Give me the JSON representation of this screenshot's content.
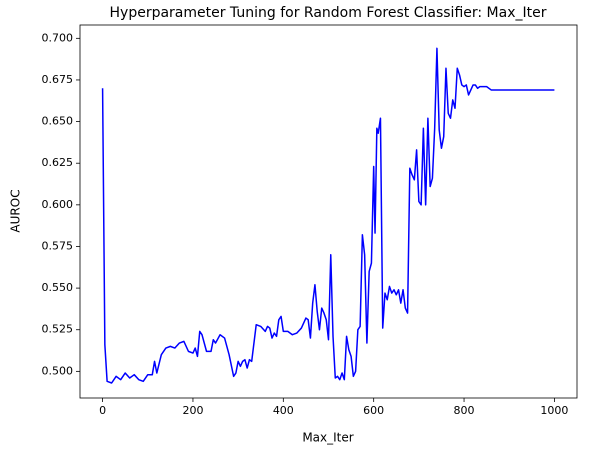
{
  "chart_data": {
    "type": "line",
    "title": "Hyperparameter Tuning for Random Forest Classifier: Max_Iter",
    "x_label": "Max_Iter",
    "y_label": "AUROC",
    "xlim": [
      -50,
      1050
    ],
    "ylim": [
      0.484,
      0.708
    ],
    "xticks": [
      0,
      200,
      400,
      600,
      800,
      1000
    ],
    "yticks": [
      {
        "value": 0.5,
        "label": "0.500"
      },
      {
        "value": 0.525,
        "label": "0.525"
      },
      {
        "value": 0.55,
        "label": "0.550"
      },
      {
        "value": 0.575,
        "label": "0.575"
      },
      {
        "value": 0.6,
        "label": "0.600"
      },
      {
        "value": 0.625,
        "label": "0.625"
      },
      {
        "value": 0.65,
        "label": "0.650"
      },
      {
        "value": 0.675,
        "label": "0.675"
      },
      {
        "value": 0.7,
        "label": "0.700"
      }
    ],
    "grid": false,
    "series": [
      {
        "color": "#0000ff",
        "x": [
          0,
          5,
          10,
          20,
          30,
          40,
          50,
          60,
          70,
          80,
          90,
          100,
          110,
          115,
          120,
          130,
          140,
          150,
          160,
          170,
          180,
          190,
          200,
          205,
          210,
          215,
          220,
          230,
          240,
          245,
          250,
          260,
          270,
          280,
          290,
          295,
          300,
          305,
          310,
          315,
          320,
          325,
          330,
          340,
          350,
          360,
          365,
          370,
          375,
          380,
          385,
          390,
          395,
          400,
          410,
          420,
          430,
          440,
          450,
          455,
          460,
          465,
          470,
          475,
          480,
          485,
          490,
          495,
          500,
          505,
          510,
          515,
          520,
          525,
          530,
          535,
          540,
          545,
          550,
          555,
          560,
          565,
          570,
          575,
          580,
          585,
          590,
          595,
          600,
          603,
          607,
          610,
          615,
          620,
          625,
          630,
          635,
          640,
          645,
          650,
          655,
          660,
          665,
          670,
          675,
          680,
          685,
          690,
          695,
          700,
          705,
          710,
          715,
          720,
          725,
          730,
          735,
          740,
          745,
          750,
          755,
          760,
          765,
          770,
          775,
          780,
          785,
          790,
          795,
          800,
          805,
          810,
          815,
          820,
          825,
          830,
          835,
          840,
          850,
          860,
          1000
        ],
        "values": [
          0.67,
          0.516,
          0.494,
          0.493,
          0.497,
          0.495,
          0.499,
          0.496,
          0.498,
          0.495,
          0.494,
          0.498,
          0.498,
          0.506,
          0.499,
          0.51,
          0.514,
          0.515,
          0.514,
          0.517,
          0.518,
          0.512,
          0.511,
          0.514,
          0.509,
          0.524,
          0.522,
          0.512,
          0.512,
          0.519,
          0.517,
          0.522,
          0.52,
          0.51,
          0.497,
          0.499,
          0.506,
          0.503,
          0.506,
          0.507,
          0.502,
          0.507,
          0.506,
          0.528,
          0.527,
          0.524,
          0.527,
          0.526,
          0.52,
          0.523,
          0.521,
          0.531,
          0.533,
          0.524,
          0.524,
          0.522,
          0.523,
          0.526,
          0.532,
          0.531,
          0.52,
          0.541,
          0.552,
          0.536,
          0.525,
          0.538,
          0.535,
          0.531,
          0.519,
          0.57,
          0.521,
          0.496,
          0.497,
          0.495,
          0.499,
          0.495,
          0.521,
          0.513,
          0.509,
          0.497,
          0.5,
          0.525,
          0.527,
          0.582,
          0.57,
          0.517,
          0.56,
          0.565,
          0.623,
          0.583,
          0.646,
          0.643,
          0.652,
          0.526,
          0.547,
          0.543,
          0.551,
          0.547,
          0.549,
          0.546,
          0.549,
          0.541,
          0.549,
          0.538,
          0.535,
          0.622,
          0.618,
          0.615,
          0.633,
          0.602,
          0.6,
          0.646,
          0.6,
          0.652,
          0.611,
          0.616,
          0.646,
          0.694,
          0.645,
          0.634,
          0.641,
          0.682,
          0.655,
          0.652,
          0.663,
          0.658,
          0.682,
          0.678,
          0.672,
          0.671,
          0.672,
          0.666,
          0.669,
          0.672,
          0.672,
          0.67,
          0.671,
          0.671,
          0.671,
          0.669,
          0.669
        ]
      }
    ]
  }
}
